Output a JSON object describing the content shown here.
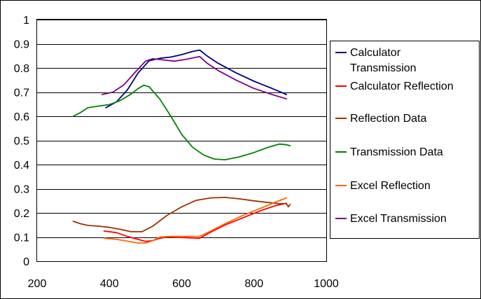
{
  "chart_data": {
    "type": "line",
    "title": "",
    "xlabel": "",
    "ylabel": "",
    "xlim": [
      200,
      1000
    ],
    "ylim": [
      0,
      1
    ],
    "x_ticks": [
      200,
      400,
      600,
      800,
      1000
    ],
    "y_ticks": [
      0,
      0.1,
      0.2,
      0.3,
      0.4,
      0.5,
      0.6,
      0.7,
      0.8,
      0.9,
      1
    ],
    "y_tick_labels": [
      "0",
      "0.1",
      "0.2",
      "0.3",
      "0.4",
      "0.5",
      "0.6",
      "0.7",
      "0.8",
      "0.9",
      "1"
    ],
    "grid": "horizontal major",
    "legend_position": "right",
    "series": [
      {
        "name": "Calculator Transmission",
        "legend_lines": [
          "Calculator",
          "Transmission"
        ],
        "color": "#000080",
        "points": [
          [
            390,
            0.635
          ],
          [
            420,
            0.66
          ],
          [
            450,
            0.71
          ],
          [
            480,
            0.78
          ],
          [
            510,
            0.83
          ],
          [
            540,
            0.84
          ],
          [
            570,
            0.845
          ],
          [
            600,
            0.855
          ],
          [
            630,
            0.868
          ],
          [
            650,
            0.874
          ],
          [
            670,
            0.85
          ],
          [
            700,
            0.82
          ],
          [
            750,
            0.78
          ],
          [
            800,
            0.745
          ],
          [
            850,
            0.715
          ],
          [
            890,
            0.69
          ]
        ]
      },
      {
        "name": "Calculator Reflection",
        "legend_lines": [
          "Calculator Reflection"
        ],
        "color": "#ff0000",
        "points": [
          [
            385,
            0.125
          ],
          [
            420,
            0.118
          ],
          [
            450,
            0.102
          ],
          [
            480,
            0.09
          ],
          [
            500,
            0.082
          ],
          [
            520,
            0.085
          ],
          [
            540,
            0.095
          ],
          [
            560,
            0.1
          ],
          [
            600,
            0.098
          ],
          [
            650,
            0.095
          ],
          [
            680,
            0.12
          ],
          [
            720,
            0.15
          ],
          [
            770,
            0.18
          ],
          [
            820,
            0.21
          ],
          [
            860,
            0.23
          ],
          [
            890,
            0.24
          ]
        ]
      },
      {
        "name": "Reflection Data",
        "legend_lines": [
          "Reflection Data"
        ],
        "color": "#993300",
        "points": [
          [
            300,
            0.165
          ],
          [
            320,
            0.155
          ],
          [
            340,
            0.148
          ],
          [
            370,
            0.145
          ],
          [
            400,
            0.14
          ],
          [
            430,
            0.132
          ],
          [
            460,
            0.122
          ],
          [
            490,
            0.122
          ],
          [
            520,
            0.145
          ],
          [
            560,
            0.19
          ],
          [
            600,
            0.225
          ],
          [
            640,
            0.252
          ],
          [
            680,
            0.262
          ],
          [
            720,
            0.264
          ],
          [
            760,
            0.258
          ],
          [
            800,
            0.25
          ],
          [
            840,
            0.243
          ],
          [
            870,
            0.238
          ],
          [
            890,
            0.238
          ],
          [
            895,
            0.225
          ],
          [
            900,
            0.235
          ]
        ]
      },
      {
        "name": "Transmission Data",
        "legend_lines": [
          "Transmission Data"
        ],
        "color": "#008000",
        "points": [
          [
            300,
            0.6
          ],
          [
            320,
            0.615
          ],
          [
            340,
            0.635
          ],
          [
            370,
            0.642
          ],
          [
            400,
            0.648
          ],
          [
            430,
            0.665
          ],
          [
            460,
            0.692
          ],
          [
            480,
            0.715
          ],
          [
            495,
            0.728
          ],
          [
            510,
            0.722
          ],
          [
            540,
            0.67
          ],
          [
            570,
            0.6
          ],
          [
            600,
            0.525
          ],
          [
            630,
            0.472
          ],
          [
            660,
            0.44
          ],
          [
            690,
            0.423
          ],
          [
            720,
            0.42
          ],
          [
            760,
            0.432
          ],
          [
            800,
            0.45
          ],
          [
            840,
            0.472
          ],
          [
            870,
            0.485
          ],
          [
            890,
            0.482
          ],
          [
            900,
            0.478
          ]
        ]
      },
      {
        "name": "Excel Reflection",
        "legend_lines": [
          "Excel Reflection"
        ],
        "color": "#ff6600",
        "points": [
          [
            385,
            0.095
          ],
          [
            420,
            0.09
          ],
          [
            450,
            0.083
          ],
          [
            480,
            0.075
          ],
          [
            500,
            0.075
          ],
          [
            520,
            0.085
          ],
          [
            540,
            0.1
          ],
          [
            570,
            0.103
          ],
          [
            600,
            0.102
          ],
          [
            650,
            0.103
          ],
          [
            680,
            0.125
          ],
          [
            720,
            0.155
          ],
          [
            770,
            0.19
          ],
          [
            820,
            0.22
          ],
          [
            860,
            0.245
          ],
          [
            890,
            0.262
          ]
        ]
      },
      {
        "name": "Excel Transmission",
        "legend_lines": [
          "Excel Transmission"
        ],
        "color": "#800080",
        "points": [
          [
            380,
            0.69
          ],
          [
            410,
            0.7
          ],
          [
            440,
            0.73
          ],
          [
            470,
            0.78
          ],
          [
            500,
            0.828
          ],
          [
            520,
            0.838
          ],
          [
            550,
            0.833
          ],
          [
            580,
            0.828
          ],
          [
            610,
            0.835
          ],
          [
            650,
            0.847
          ],
          [
            670,
            0.82
          ],
          [
            700,
            0.79
          ],
          [
            750,
            0.75
          ],
          [
            800,
            0.715
          ],
          [
            850,
            0.69
          ],
          [
            890,
            0.672
          ]
        ]
      }
    ]
  }
}
